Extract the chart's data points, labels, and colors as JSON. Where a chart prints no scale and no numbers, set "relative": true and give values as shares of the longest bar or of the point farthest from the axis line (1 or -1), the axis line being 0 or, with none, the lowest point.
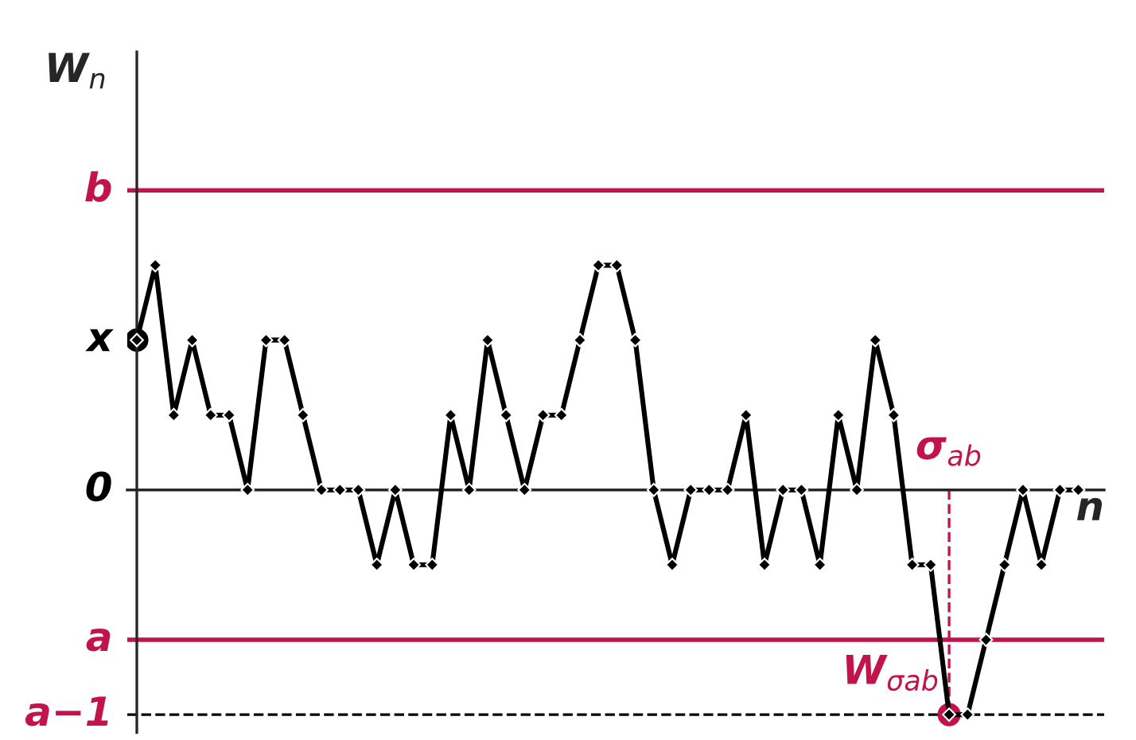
{
  "chart_data": {
    "type": "line",
    "relative": true,
    "xlabel": "n",
    "ylabel": "W$_{n}$",
    "marker": "diamond",
    "line_style": "solid",
    "grid": false,
    "legend": false,
    "categories": [
      null,
      null,
      null,
      null,
      null,
      null,
      null,
      null,
      null,
      null,
      null,
      null,
      null,
      null,
      null,
      null,
      null,
      null,
      null,
      null,
      null,
      null,
      null,
      null,
      null,
      null,
      null,
      null,
      null,
      null,
      null,
      null,
      null,
      null,
      null,
      null,
      null,
      null,
      null,
      null,
      null,
      null,
      null,
      null,
      null,
      null,
      null,
      null,
      null,
      null,
      null,
      null
    ],
    "series": [
      {
        "color": "#000000",
        "values": [
          0.667,
          1,
          0.333,
          0.667,
          0.333,
          0.333,
          0,
          0.667,
          0.667,
          0.333,
          0,
          0,
          0,
          -0.333,
          0,
          -0.333,
          -0.333,
          0.333,
          0,
          0.667,
          0.333,
          0,
          0.333,
          0.333,
          0.667,
          1,
          1,
          0.667,
          0,
          -0.333,
          0,
          0,
          0,
          0.333,
          -0.333,
          0,
          0,
          -0.333,
          0.333,
          0,
          0.667,
          0.333,
          -0.333,
          -0.333,
          -1,
          -1,
          -0.667,
          -0.333,
          0,
          -0.333,
          0,
          0
        ]
      }
    ],
    "ref_lines": [
      {
        "axis": "y",
        "value": 1.333,
        "label": "b",
        "color": "#c0144a",
        "line_style": "solid"
      },
      {
        "axis": "y",
        "value": -0.667,
        "label": "a",
        "color": "#c0144a",
        "line_style": "solid"
      },
      {
        "axis": "y",
        "value": -1,
        "label": "a−1",
        "color": "#000000",
        "line_style": "dashed"
      }
    ],
    "annotations": [
      "x",
      "0",
      "σ$_{ab}$",
      "W$_{σab}$"
    ]
  }
}
